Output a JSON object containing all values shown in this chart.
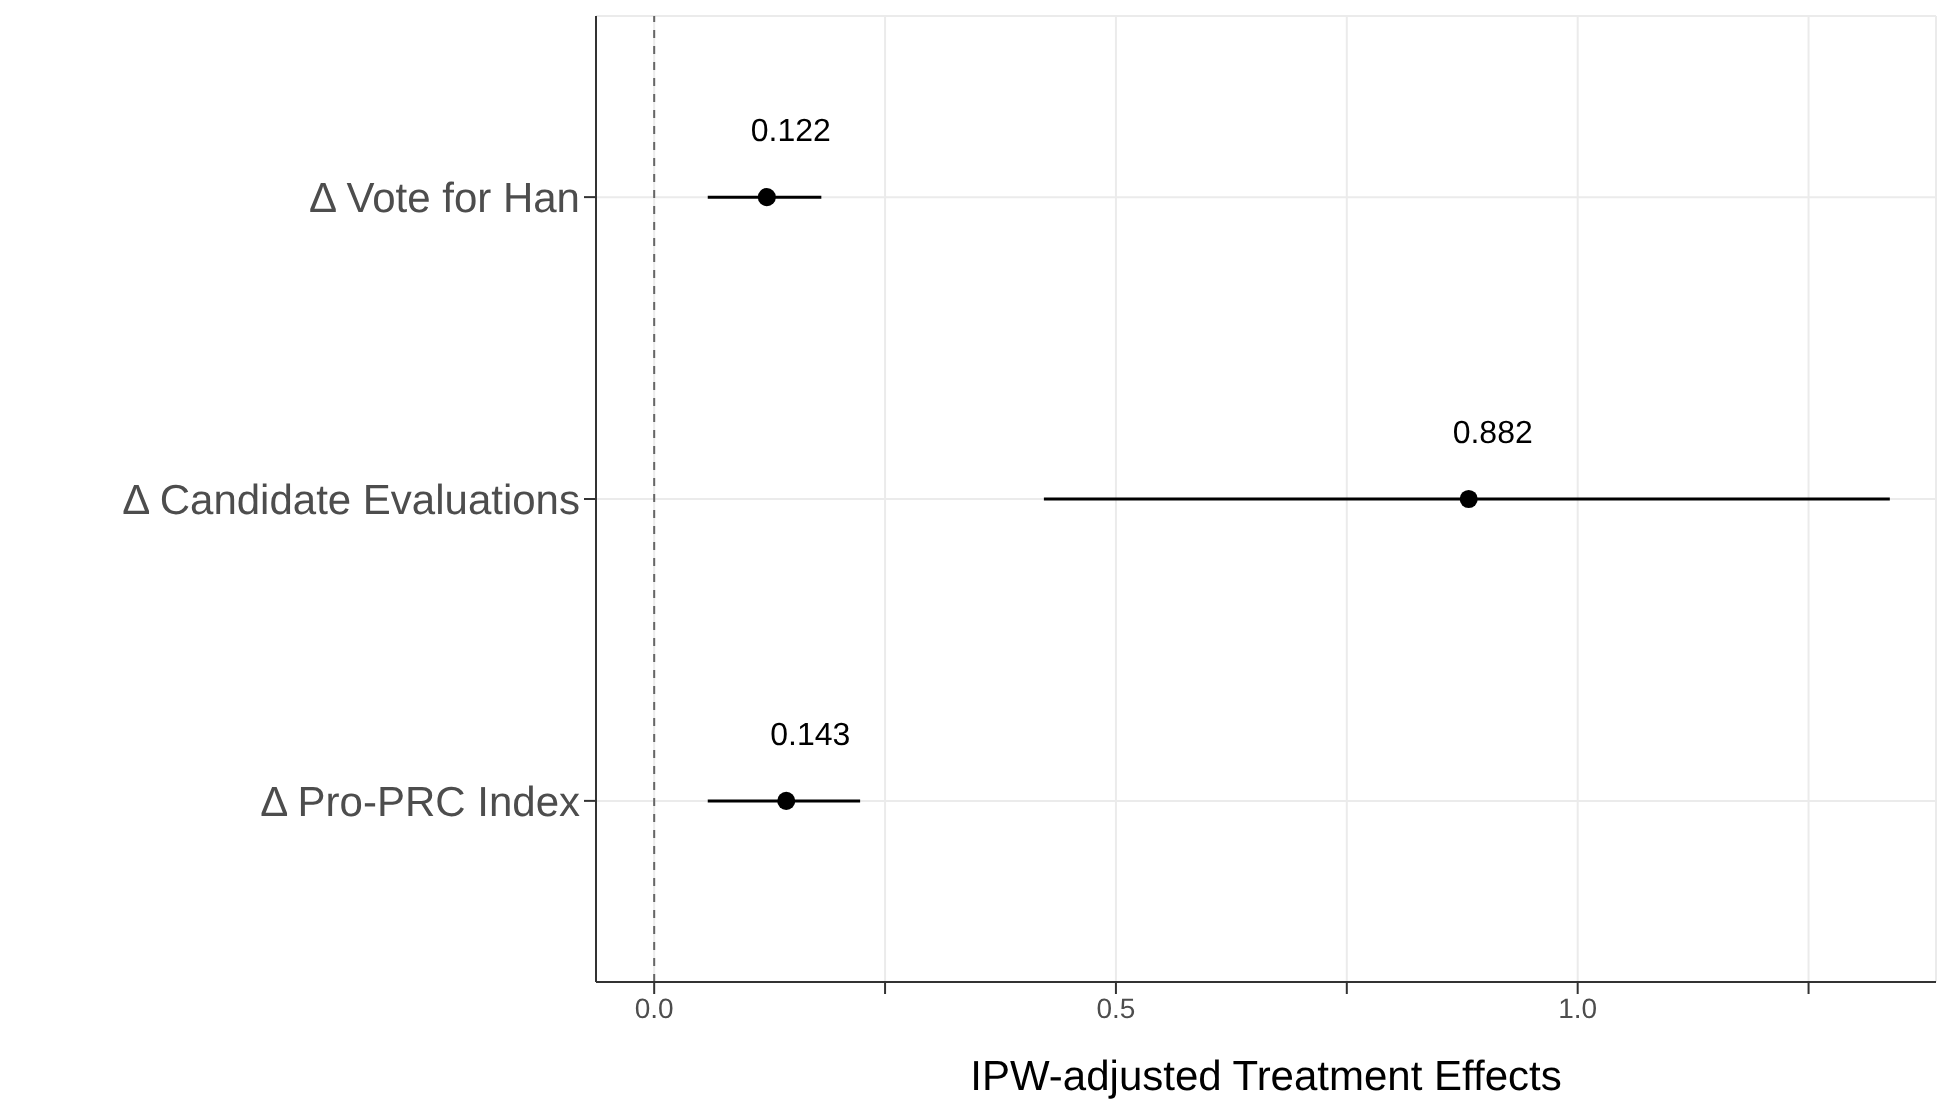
{
  "chart_data": {
    "type": "scatter",
    "orientation": "horizontal",
    "xlabel": "IPW-adjusted Treatment Effects",
    "categories": [
      "Δ Vote for Han",
      "Δ Candidate Evaluations",
      "Δ Pro-PRC Index"
    ],
    "values": [
      0.122,
      0.882,
      0.143
    ],
    "errors": [
      [
        0.058,
        0.181
      ],
      [
        0.422,
        1.338
      ],
      [
        0.058,
        0.223
      ]
    ],
    "color": "#000000",
    "data_labels": true,
    "marker": "circle",
    "xlim": [
      -0.063,
      1.388
    ],
    "xticks": [
      {
        "value": 0,
        "label": "0.0"
      },
      {
        "value": 0.25,
        "label": null
      },
      {
        "value": 0.5,
        "label": "0.5"
      },
      {
        "value": 0.75,
        "label": null
      },
      {
        "value": 1,
        "label": "1.0"
      },
      {
        "value": 1.25,
        "label": null
      }
    ],
    "ref_lines": [
      {
        "axis": "x",
        "value": 0,
        "line_style": "dashed",
        "color": "#666666"
      }
    ],
    "grid": true
  }
}
